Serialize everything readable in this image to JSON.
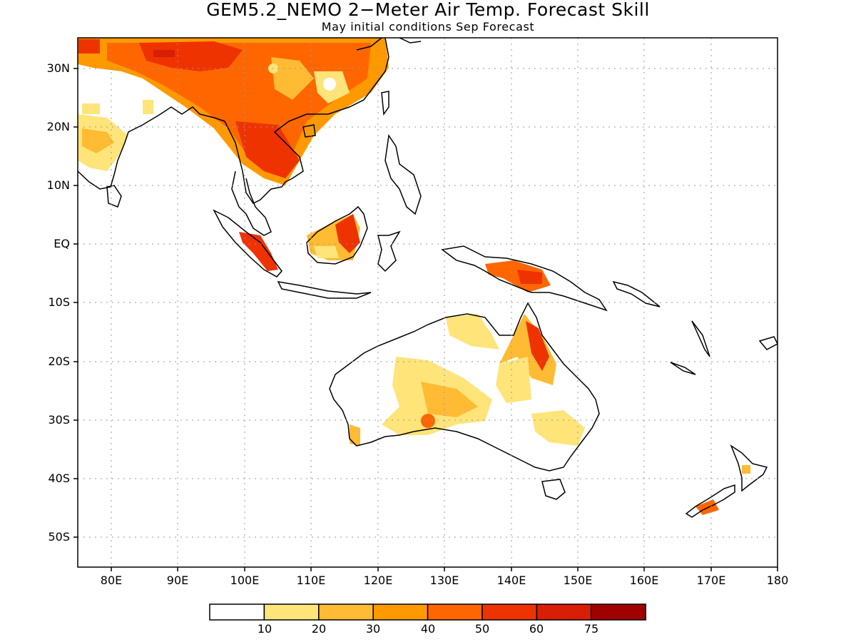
{
  "title": "GEM5.2_NEMO 2−Meter Air Temp. Forecast Skill",
  "subtitle": "May initial conditions  Sep Forecast",
  "map": {
    "lon_range": [
      75,
      180
    ],
    "lat_range": [
      -55,
      35
    ],
    "lat_ticks": [
      {
        "lat": 30,
        "label": "30N"
      },
      {
        "lat": 20,
        "label": "20N"
      },
      {
        "lat": 10,
        "label": "10N"
      },
      {
        "lat": 0,
        "label": "EQ"
      },
      {
        "lat": -10,
        "label": "10S"
      },
      {
        "lat": -20,
        "label": "20S"
      },
      {
        "lat": -30,
        "label": "30S"
      },
      {
        "lat": -40,
        "label": "40S"
      },
      {
        "lat": -50,
        "label": "50S"
      }
    ],
    "lon_ticks": [
      {
        "lon": 80,
        "label": "80E"
      },
      {
        "lon": 90,
        "label": "90E"
      },
      {
        "lon": 100,
        "label": "100E"
      },
      {
        "lon": 110,
        "label": "110E"
      },
      {
        "lon": 120,
        "label": "120E"
      },
      {
        "lon": 130,
        "label": "130E"
      },
      {
        "lon": 140,
        "label": "140E"
      },
      {
        "lon": 150,
        "label": "150E"
      },
      {
        "lon": 160,
        "label": "160E"
      },
      {
        "lon": 170,
        "label": "170E"
      },
      {
        "lon": 180,
        "label": "180"
      }
    ],
    "colorbar": {
      "colors": [
        "#ffffff",
        "#ffe47a",
        "#ffbb33",
        "#ff9900",
        "#ff6600",
        "#ee3300",
        "#d81e05",
        "#a00000"
      ],
      "labels": [
        "10",
        "20",
        "30",
        "40",
        "50",
        "60",
        "75"
      ]
    }
  }
}
